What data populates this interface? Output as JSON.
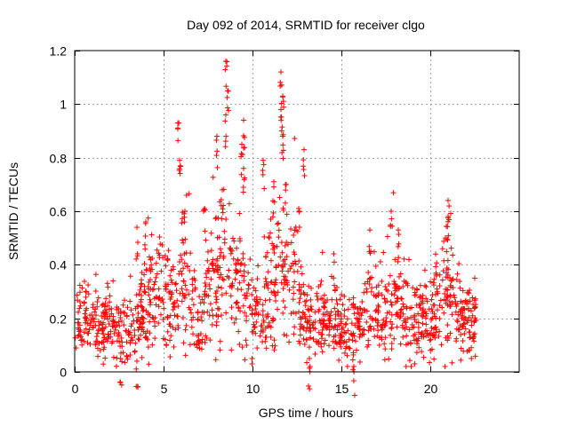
{
  "chart_data": {
    "type": "scatter",
    "title": "Day 092 of 2014, SRMTID for receiver clgo",
    "xlabel": "GPS time / hours",
    "ylabel": "SRMTID / TECUs",
    "xlim": [
      0,
      25
    ],
    "ylim": [
      0,
      1.2
    ],
    "x_ticks": [
      0,
      5,
      10,
      15,
      20
    ],
    "y_ticks": [
      0,
      0.2,
      0.4,
      0.6,
      0.8,
      1,
      1.2
    ],
    "x_tick_labels": [
      "0",
      "5",
      "10",
      "15",
      "20"
    ],
    "y_tick_labels": [
      "0",
      "0.2",
      "0.4",
      "0.6",
      "0.8",
      "1",
      "1.2"
    ],
    "grid": true,
    "marker": "+",
    "color": "#ff0000",
    "data_range": [
      0,
      22.6
    ],
    "series": [
      {
        "name": "SRMTID",
        "profile": [
          {
            "x": 0.0,
            "y": 0.17
          },
          {
            "x": 1.0,
            "y": 0.19
          },
          {
            "x": 1.5,
            "y": 0.15
          },
          {
            "x": 2.0,
            "y": 0.2
          },
          {
            "x": 2.5,
            "y": 0.16
          },
          {
            "x": 3.0,
            "y": 0.15
          },
          {
            "x": 3.5,
            "y": 0.17
          },
          {
            "x": 4.0,
            "y": 0.25
          },
          {
            "x": 4.5,
            "y": 0.3
          },
          {
            "x": 5.0,
            "y": 0.28
          },
          {
            "x": 5.5,
            "y": 0.25
          },
          {
            "x": 6.0,
            "y": 0.35
          },
          {
            "x": 6.5,
            "y": 0.3
          },
          {
            "x": 7.0,
            "y": 0.15
          },
          {
            "x": 7.5,
            "y": 0.28
          },
          {
            "x": 8.0,
            "y": 0.35
          },
          {
            "x": 8.5,
            "y": 0.38
          },
          {
            "x": 9.0,
            "y": 0.35
          },
          {
            "x": 9.5,
            "y": 0.3
          },
          {
            "x": 10.0,
            "y": 0.22
          },
          {
            "x": 10.5,
            "y": 0.2
          },
          {
            "x": 11.0,
            "y": 0.3
          },
          {
            "x": 11.5,
            "y": 0.35
          },
          {
            "x": 12.0,
            "y": 0.3
          },
          {
            "x": 12.5,
            "y": 0.32
          },
          {
            "x": 13.0,
            "y": 0.18
          },
          {
            "x": 14.0,
            "y": 0.17
          },
          {
            "x": 15.0,
            "y": 0.15
          },
          {
            "x": 16.0,
            "y": 0.17
          },
          {
            "x": 16.5,
            "y": 0.25
          },
          {
            "x": 17.0,
            "y": 0.22
          },
          {
            "x": 17.5,
            "y": 0.2
          },
          {
            "x": 18.0,
            "y": 0.25
          },
          {
            "x": 19.0,
            "y": 0.2
          },
          {
            "x": 20.0,
            "y": 0.18
          },
          {
            "x": 20.5,
            "y": 0.25
          },
          {
            "x": 21.0,
            "y": 0.3
          },
          {
            "x": 21.5,
            "y": 0.22
          },
          {
            "x": 22.0,
            "y": 0.2
          },
          {
            "x": 22.6,
            "y": 0.18
          }
        ],
        "peaks": [
          {
            "x": 5.8,
            "y": 0.93
          },
          {
            "x": 5.9,
            "y": 0.79
          },
          {
            "x": 6.2,
            "y": 0.6
          },
          {
            "x": 3.5,
            "y": 0.54
          },
          {
            "x": 4.0,
            "y": 0.56
          },
          {
            "x": 7.3,
            "y": 0.61
          },
          {
            "x": 8.0,
            "y": 0.88
          },
          {
            "x": 8.5,
            "y": 1.16
          },
          {
            "x": 8.6,
            "y": 1.05
          },
          {
            "x": 8.5,
            "y": 0.96
          },
          {
            "x": 8.3,
            "y": 0.68
          },
          {
            "x": 9.5,
            "y": 0.94
          },
          {
            "x": 9.4,
            "y": 0.85
          },
          {
            "x": 9.5,
            "y": 0.76
          },
          {
            "x": 10.6,
            "y": 0.79
          },
          {
            "x": 11.2,
            "y": 0.71
          },
          {
            "x": 11.6,
            "y": 1.12
          },
          {
            "x": 11.7,
            "y": 1.03
          },
          {
            "x": 11.6,
            "y": 0.98
          },
          {
            "x": 11.7,
            "y": 0.88
          },
          {
            "x": 11.9,
            "y": 0.7
          },
          {
            "x": 12.9,
            "y": 0.83
          },
          {
            "x": 12.6,
            "y": 0.61
          },
          {
            "x": 15.7,
            "y": 0.02
          },
          {
            "x": 16.6,
            "y": 0.53
          },
          {
            "x": 17.8,
            "y": 0.6
          },
          {
            "x": 18.2,
            "y": 0.53
          },
          {
            "x": 20.3,
            "y": 0.44
          },
          {
            "x": 21.0,
            "y": 0.64
          },
          {
            "x": 21.0,
            "y": 0.58
          },
          {
            "x": 22.5,
            "y": 0.35
          },
          {
            "x": 3.5,
            "y": 0.04
          },
          {
            "x": 2.6,
            "y": 0.07
          },
          {
            "x": 14.6,
            "y": 0.41
          },
          {
            "x": 13.2,
            "y": 0.05
          }
        ]
      }
    ]
  }
}
